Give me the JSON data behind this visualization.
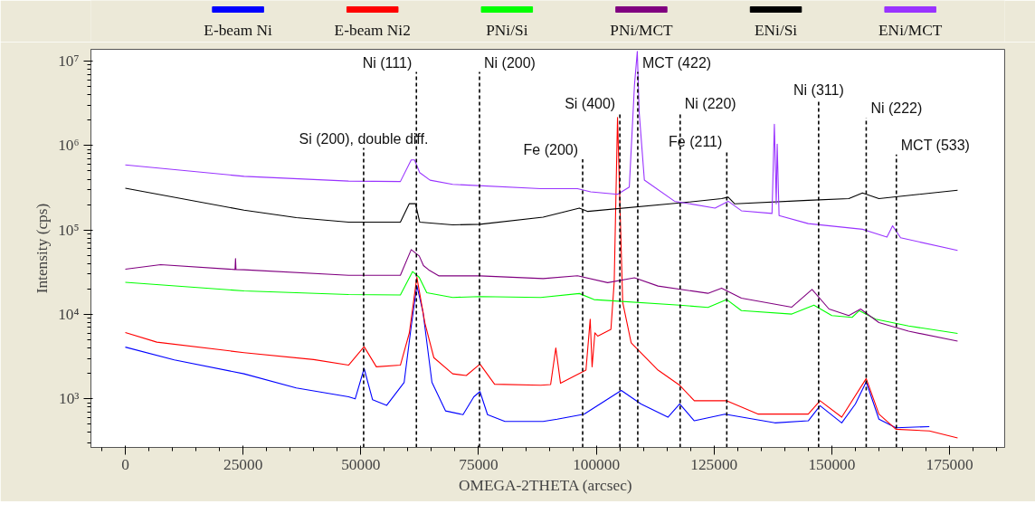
{
  "chart_data": {
    "type": "line",
    "xlabel": "OMEGA-2THETA  (arcsec)",
    "ylabel": "Intensity (cps)",
    "log": "y",
    "legend": "top",
    "marker": "none",
    "line_style": "solid",
    "xlim": [
      -7300,
      186700
    ],
    "xticks": [
      0,
      25000,
      50000,
      75000,
      100000,
      125000,
      150000,
      175000
    ],
    "ylim": [
      266,
      13800000
    ],
    "yticks": [
      {
        "value": 1000,
        "label": "10³"
      },
      {
        "value": 10000,
        "label": "10⁴"
      },
      {
        "value": 100000,
        "label": "10⁵"
      },
      {
        "value": 1000000,
        "label": "10⁶"
      },
      {
        "value": 10000000,
        "label": "10⁷"
      }
    ],
    "series": [
      {
        "name": "E-beam Ni",
        "color": "#0000ff",
        "x": [
          0,
          10400,
          25200,
          36300,
          47400,
          48800,
          50700,
          52500,
          55500,
          59200,
          60700,
          61900,
          63200,
          65100,
          68000,
          71700,
          74000,
          75300,
          76900,
          80600,
          88700,
          91700,
          97400,
          105300,
          109500,
          115200,
          117700,
          120800,
          127300,
          137900,
          145000,
          147500,
          152100,
          155000,
          157300,
          160000,
          163600,
          170700
        ],
        "values": [
          4100,
          2900,
          1980,
          1350,
          1060,
          1000,
          2290,
          975,
          840,
          1570,
          7240,
          22000,
          10700,
          1570,
          720,
          650,
          1060,
          1220,
          650,
          540,
          540,
          575,
          660,
          1260,
          870,
          607,
          870,
          550,
          660,
          520,
          550,
          830,
          520,
          870,
          1590,
          575,
          455,
          470
        ]
      },
      {
        "name": "E-beam Ni2",
        "color": "#ff0000",
        "x": [
          0,
          6700,
          25200,
          40000,
          47400,
          50700,
          53300,
          58400,
          60300,
          61900,
          63600,
          65500,
          69500,
          72400,
          75300,
          78400,
          88200,
          90300,
          91400,
          92400,
          97800,
          98700,
          99100,
          99700,
          100300,
          103100,
          103800,
          104500,
          105600,
          107400,
          113100,
          117700,
          120800,
          127700,
          134400,
          145000,
          147500,
          152100,
          157300,
          160000,
          163600,
          170700,
          176700
        ],
        "values": [
          6100,
          4700,
          3530,
          2920,
          2510,
          4150,
          2400,
          2510,
          6030,
          27600,
          7940,
          3080,
          1980,
          1890,
          2580,
          1490,
          1450,
          1480,
          4000,
          1530,
          2190,
          8770,
          2400,
          6060,
          5530,
          6660,
          24400,
          2150000,
          13900,
          4600,
          2190,
          1450,
          950,
          950,
          660,
          660,
          950,
          607,
          1740,
          660,
          437,
          417,
          345
        ]
      },
      {
        "name": "PNi/Si",
        "color": "#00ff00",
        "x": [
          0,
          25200,
          47400,
          58400,
          61000,
          62400,
          64000,
          69500,
          75300,
          88200,
          96400,
          99500,
          117700,
          123700,
          127700,
          130800,
          141500,
          146200,
          150000,
          154300,
          155800,
          159300,
          166300,
          176700
        ],
        "values": [
          24000,
          19000,
          17200,
          17000,
          32200,
          27500,
          18100,
          15900,
          16300,
          15900,
          17700,
          15000,
          12900,
          12100,
          15000,
          11100,
          10100,
          12900,
          9700,
          9230,
          11100,
          8770,
          7300,
          5950
        ]
      },
      {
        "name": "PNi/MCT",
        "color": "#800080",
        "x": [
          0,
          7500,
          23300,
          23400,
          23500,
          25200,
          47400,
          58400,
          60700,
          62400,
          63300,
          64400,
          66600,
          75300,
          88700,
          96000,
          102400,
          108100,
          113100,
          123700,
          126600,
          130800,
          141500,
          145800,
          149400,
          153600,
          156100,
          160000,
          166300,
          176700
        ],
        "values": [
          34300,
          38900,
          34000,
          45900,
          34000,
          33800,
          29100,
          29100,
          58600,
          49300,
          37900,
          33800,
          28600,
          28600,
          26600,
          28700,
          23800,
          27200,
          21700,
          17800,
          20500,
          15600,
          12200,
          19800,
          11600,
          9700,
          11600,
          8000,
          6330,
          4830
        ]
      },
      {
        "name": "ENi/Si",
        "color": "#000000",
        "x": [
          0,
          25200,
          36300,
          47400,
          58400,
          60300,
          61600,
          62500,
          69500,
          75300,
          88700,
          96400,
          98200,
          117700,
          126600,
          128000,
          129400,
          145000,
          153600,
          156500,
          160000,
          176700
        ],
        "values": [
          312000,
          172000,
          140000,
          124000,
          124000,
          205000,
          205000,
          124000,
          115000,
          117000,
          142000,
          182000,
          166000,
          209000,
          235000,
          245000,
          204000,
          225000,
          235000,
          275000,
          235000,
          296000
        ]
      },
      {
        "name": "ENi/MCT",
        "color": "#9933ff",
        "x": [
          0,
          25200,
          47400,
          58400,
          60700,
          61400,
          62500,
          64700,
          69500,
          88200,
          96000,
          98800,
          104500,
          107000,
          108100,
          108700,
          109100,
          110200,
          116600,
          125200,
          128000,
          130800,
          137300,
          137800,
          138200,
          138400,
          138800,
          145000,
          156500,
          161700,
          162900,
          164600,
          176700
        ],
        "values": [
          590000,
          432000,
          380000,
          375000,
          676000,
          676000,
          478000,
          389000,
          347000,
          309000,
          309000,
          283000,
          265000,
          323000,
          5200000,
          13000000,
          2480000,
          390000,
          219000,
          182000,
          219000,
          169000,
          157000,
          1790000,
          204000,
          1040000,
          148000,
          119000,
          102000,
          82300,
          112000,
          81000,
          57200
        ]
      }
    ],
    "ref_lines": [
      {
        "axis": "x",
        "value": 50600,
        "label": "Si (200), double diff.",
        "line_style": "dashed",
        "color": "#000000"
      },
      {
        "axis": "x",
        "value": 61800,
        "label": "Ni (111)",
        "line_style": "dashed",
        "color": "#000000"
      },
      {
        "axis": "x",
        "value": 75200,
        "label": "Ni (200)",
        "line_style": "dashed",
        "color": "#000000"
      },
      {
        "axis": "x",
        "value": 97100,
        "label": "Fe (200)",
        "line_style": "dashed",
        "color": "#000000"
      },
      {
        "axis": "x",
        "value": 105000,
        "label": "Si (400)",
        "line_style": "dashed",
        "color": "#000000"
      },
      {
        "axis": "x",
        "value": 108800,
        "label": "MCT (422)",
        "line_style": "dashed",
        "color": "#000000"
      },
      {
        "axis": "x",
        "value": 117800,
        "label": "Ni (220)",
        "line_style": "dashed",
        "color": "#000000"
      },
      {
        "axis": "x",
        "value": 127700,
        "label": "Fe (211)",
        "line_style": "dashed",
        "color": "#000000"
      },
      {
        "axis": "x",
        "value": 147200,
        "label": "Ni (311)",
        "line_style": "dashed",
        "color": "#000000"
      },
      {
        "axis": "x",
        "value": 157300,
        "label": "Ni (222)",
        "line_style": "dashed",
        "color": "#000000"
      },
      {
        "axis": "x",
        "value": 163700,
        "label": "MCT (533)",
        "line_style": "dashed",
        "color": "#000000"
      }
    ]
  }
}
